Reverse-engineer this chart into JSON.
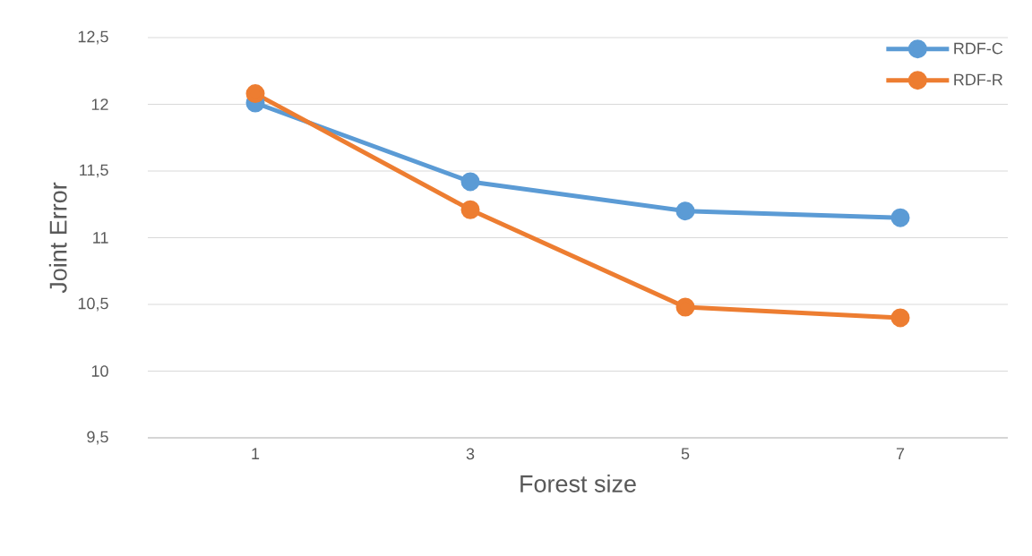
{
  "chart_data": {
    "type": "line",
    "xlabel": "Forest size",
    "ylabel": "Joint Error",
    "categories": [
      "1",
      "3",
      "5",
      "7"
    ],
    "series": [
      {
        "name": "RDF-C",
        "color": "#5b9bd5",
        "values": [
          12.01,
          11.42,
          11.2,
          11.15
        ]
      },
      {
        "name": "RDF-R",
        "color": "#ed7d31",
        "values": [
          12.08,
          11.21,
          10.48,
          10.4
        ]
      }
    ],
    "ylim": [
      9.5,
      12.5
    ],
    "yticks": [
      {
        "value": 9.5,
        "label": "9,5"
      },
      10,
      {
        "value": 10.5,
        "label": "10,5"
      },
      11,
      {
        "value": 11.5,
        "label": "11,5"
      },
      12,
      {
        "value": 12.5,
        "label": "12,5"
      }
    ],
    "grid": "y",
    "legend": "top right",
    "marker": "circle",
    "line_style": "solid"
  }
}
